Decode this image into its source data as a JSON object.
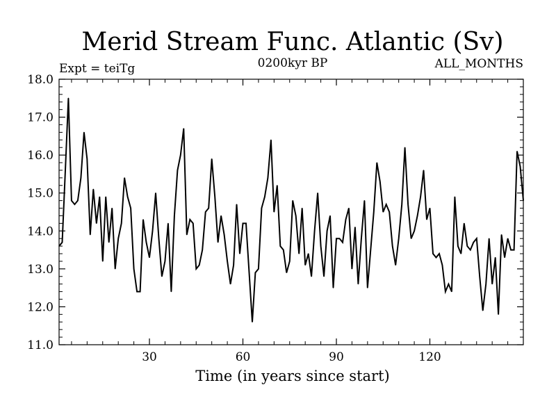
{
  "chart_data": {
    "type": "line",
    "title": "Merid Stream Func. Atlantic (Sv)",
    "subtitle_left": "Expt = teiTg",
    "subtitle_center": "0200kyr BP",
    "subtitle_right": "ALL_MONTHS",
    "xlabel": "Time (in years since start)",
    "ylabel": "",
    "xlim": [
      1,
      150
    ],
    "ylim": [
      11.0,
      18.0
    ],
    "xticks": [
      30,
      60,
      90,
      120
    ],
    "xtick_labels": [
      "30",
      "60",
      "90",
      "120"
    ],
    "yticks": [
      11.0,
      12.0,
      13.0,
      14.0,
      15.0,
      16.0,
      17.0,
      18.0
    ],
    "ytick_labels": [
      "11.0",
      "12.0",
      "13.0",
      "14.0",
      "15.0",
      "16.0",
      "17.0",
      "18.0"
    ],
    "grid": false,
    "series": [
      {
        "name": "Merid Stream Func. Atlantic",
        "color": "#000000",
        "x": [
          1,
          2,
          3,
          4,
          5,
          6,
          7,
          8,
          9,
          10,
          11,
          12,
          13,
          14,
          15,
          16,
          17,
          18,
          19,
          20,
          21,
          22,
          23,
          24,
          25,
          26,
          27,
          28,
          29,
          30,
          31,
          32,
          33,
          34,
          35,
          36,
          37,
          38,
          39,
          40,
          41,
          42,
          43,
          44,
          45,
          46,
          47,
          48,
          49,
          50,
          51,
          52,
          53,
          54,
          55,
          56,
          57,
          58,
          59,
          60,
          61,
          62,
          63,
          64,
          65,
          66,
          67,
          68,
          69,
          70,
          71,
          72,
          73,
          74,
          75,
          76,
          77,
          78,
          79,
          80,
          81,
          82,
          83,
          84,
          85,
          86,
          87,
          88,
          89,
          90,
          91,
          92,
          93,
          94,
          95,
          96,
          97,
          98,
          99,
          100,
          101,
          102,
          103,
          104,
          105,
          106,
          107,
          108,
          109,
          110,
          111,
          112,
          113,
          114,
          115,
          116,
          117,
          118,
          119,
          120,
          121,
          122,
          123,
          124,
          125,
          126,
          127,
          128,
          129,
          130,
          131,
          132,
          133,
          134,
          135,
          136,
          137,
          138,
          139,
          140,
          141,
          142,
          143,
          144,
          145,
          146,
          147,
          148,
          149,
          150
        ],
        "values": [
          13.6,
          13.7,
          15.6,
          17.5,
          14.8,
          14.7,
          14.8,
          15.4,
          16.6,
          15.9,
          13.9,
          15.1,
          14.2,
          14.9,
          13.2,
          14.9,
          13.7,
          14.6,
          13.0,
          13.8,
          14.2,
          15.4,
          14.9,
          14.6,
          13.0,
          12.4,
          12.4,
          14.3,
          13.7,
          13.3,
          14.0,
          15.0,
          13.8,
          12.8,
          13.2,
          14.2,
          12.4,
          14.4,
          15.6,
          16.0,
          16.7,
          13.9,
          14.3,
          14.2,
          13.0,
          13.1,
          13.5,
          14.5,
          14.6,
          15.9,
          14.9,
          13.7,
          14.4,
          13.9,
          13.2,
          12.6,
          13.1,
          14.7,
          13.4,
          14.2,
          14.2,
          12.9,
          11.6,
          12.9,
          13.0,
          14.6,
          14.9,
          15.4,
          16.4,
          14.5,
          15.2,
          13.6,
          13.5,
          12.9,
          13.2,
          14.8,
          14.4,
          13.4,
          14.6,
          13.1,
          13.4,
          12.8,
          14.0,
          15.0,
          13.6,
          12.8,
          14.0,
          14.4,
          12.5,
          13.8,
          13.8,
          13.7,
          14.3,
          14.6,
          13.0,
          14.1,
          12.6,
          13.8,
          14.8,
          12.5,
          13.5,
          14.5,
          15.8,
          15.3,
          14.5,
          14.7,
          14.5,
          13.6,
          13.1,
          13.8,
          14.7,
          16.2,
          14.7,
          13.8,
          14.0,
          14.4,
          14.9,
          15.6,
          14.3,
          14.6,
          13.4,
          13.3,
          13.4,
          13.1,
          12.4,
          12.6,
          12.4,
          14.9,
          13.6,
          13.4,
          14.2,
          13.6,
          13.5,
          13.7,
          13.8,
          12.8,
          11.9,
          12.6,
          13.8,
          12.6,
          13.3,
          11.8,
          13.9,
          13.3,
          13.8,
          13.5,
          13.5,
          16.1,
          15.7,
          14.8
        ]
      }
    ]
  }
}
